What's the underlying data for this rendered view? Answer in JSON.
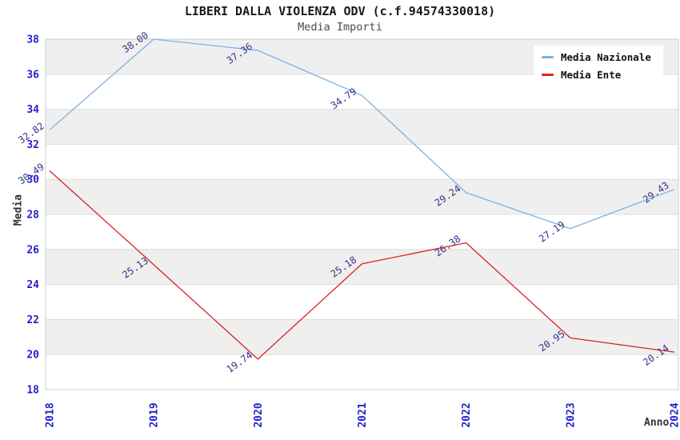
{
  "chart_data": {
    "type": "line",
    "title": "LIBERI DALLA VIOLENZA ODV (c.f.94574330018)",
    "subtitle": "Media Importi",
    "xlabel": "Anno",
    "ylabel": "Media",
    "categories": [
      "2018",
      "2019",
      "2020",
      "2021",
      "2022",
      "2023",
      "2024"
    ],
    "series": [
      {
        "name": "Media Nazionale",
        "color": "#7eb1e3",
        "values": [
          32.82,
          38.0,
          37.36,
          34.79,
          29.24,
          27.19,
          29.43
        ]
      },
      {
        "name": "Media Ente",
        "color": "#e02020",
        "values": [
          30.49,
          25.13,
          19.74,
          25.18,
          26.38,
          20.95,
          20.14
        ]
      }
    ],
    "ylim": [
      18,
      38
    ],
    "ytick_step": 2,
    "grid": true,
    "bands": "alternating gray/white every 2 units, gray at top (36-38)",
    "legend_position": "top-right",
    "label_decimals": 2,
    "colors": {
      "axis_tick_label": "#2222cc",
      "point_label": "#333388",
      "band_fill": "#efefef",
      "grid_line": "#dedede",
      "plot_border": "#cccccc",
      "title": "#1a1a1a",
      "subtitle": "#4a4a4a",
      "axis_title": "#333333",
      "background": "#ffffff"
    }
  }
}
